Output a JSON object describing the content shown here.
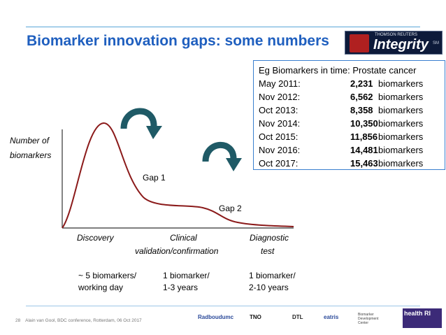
{
  "slide": {
    "title": "Biomarker innovation gaps: some numbers",
    "logo": {
      "line1": "THOMSON REUTERS",
      "brand": "Integrity",
      "tm": "SM"
    },
    "infobox": {
      "header": "Eg Biomarkers in time:  Prostate cancer",
      "rows": [
        {
          "date": "May 2011:",
          "num": "2,231",
          "unit": "biomarkers"
        },
        {
          "date": "Nov 2012:",
          "num": "6,562",
          "unit": "biomarkers"
        },
        {
          "date": "Oct 2013:",
          "num": "8,358",
          "unit": "biomarkers"
        },
        {
          "date": "Nov 2014:",
          "num": "10,350",
          "unit": "biomarkers"
        },
        {
          "date": "Oct 2015:",
          "num": "11,856",
          "unit": "biomarkers"
        },
        {
          "date": "Nov 2016:",
          "num": "14,481",
          "unit": "biomarkers"
        },
        {
          "date": "Oct 2017:",
          "num": "15,463",
          "unit": "biomarkers"
        }
      ]
    },
    "chart": {
      "ylabel_line1": "Number of",
      "ylabel_line2": "biomarkers",
      "gap1": "Gap 1",
      "gap2": "Gap 2",
      "stages": [
        {
          "line1": "Discovery",
          "line2": ""
        },
        {
          "line1": "Clinical",
          "line2": "validation/confirmation"
        },
        {
          "line1": "Diagnostic",
          "line2": "test"
        }
      ],
      "rates": [
        {
          "line1": "~ 5 biomarkers/",
          "line2": "working day"
        },
        {
          "line1": "1 biomarker/",
          "line2": "1-3 years"
        },
        {
          "line1": "1 biomarker/",
          "line2": "2-10 years"
        }
      ],
      "colors": {
        "curve": "#8b1a1a",
        "arrow": "#1f5a66",
        "axis": "#333333"
      }
    },
    "footer": {
      "page": "28",
      "text": "Alain van Gool, BDC conference, Rotterdam, 06 Oct 2017"
    },
    "partner_logos": [
      "Radboudumc",
      "TNO",
      "DTL",
      "eatris",
      "Biomarker Development Center",
      "health RI"
    ],
    "colors": {
      "title": "#1f5fbf",
      "rule": "#5aa6d8",
      "box_border": "#3a7fcf"
    }
  }
}
